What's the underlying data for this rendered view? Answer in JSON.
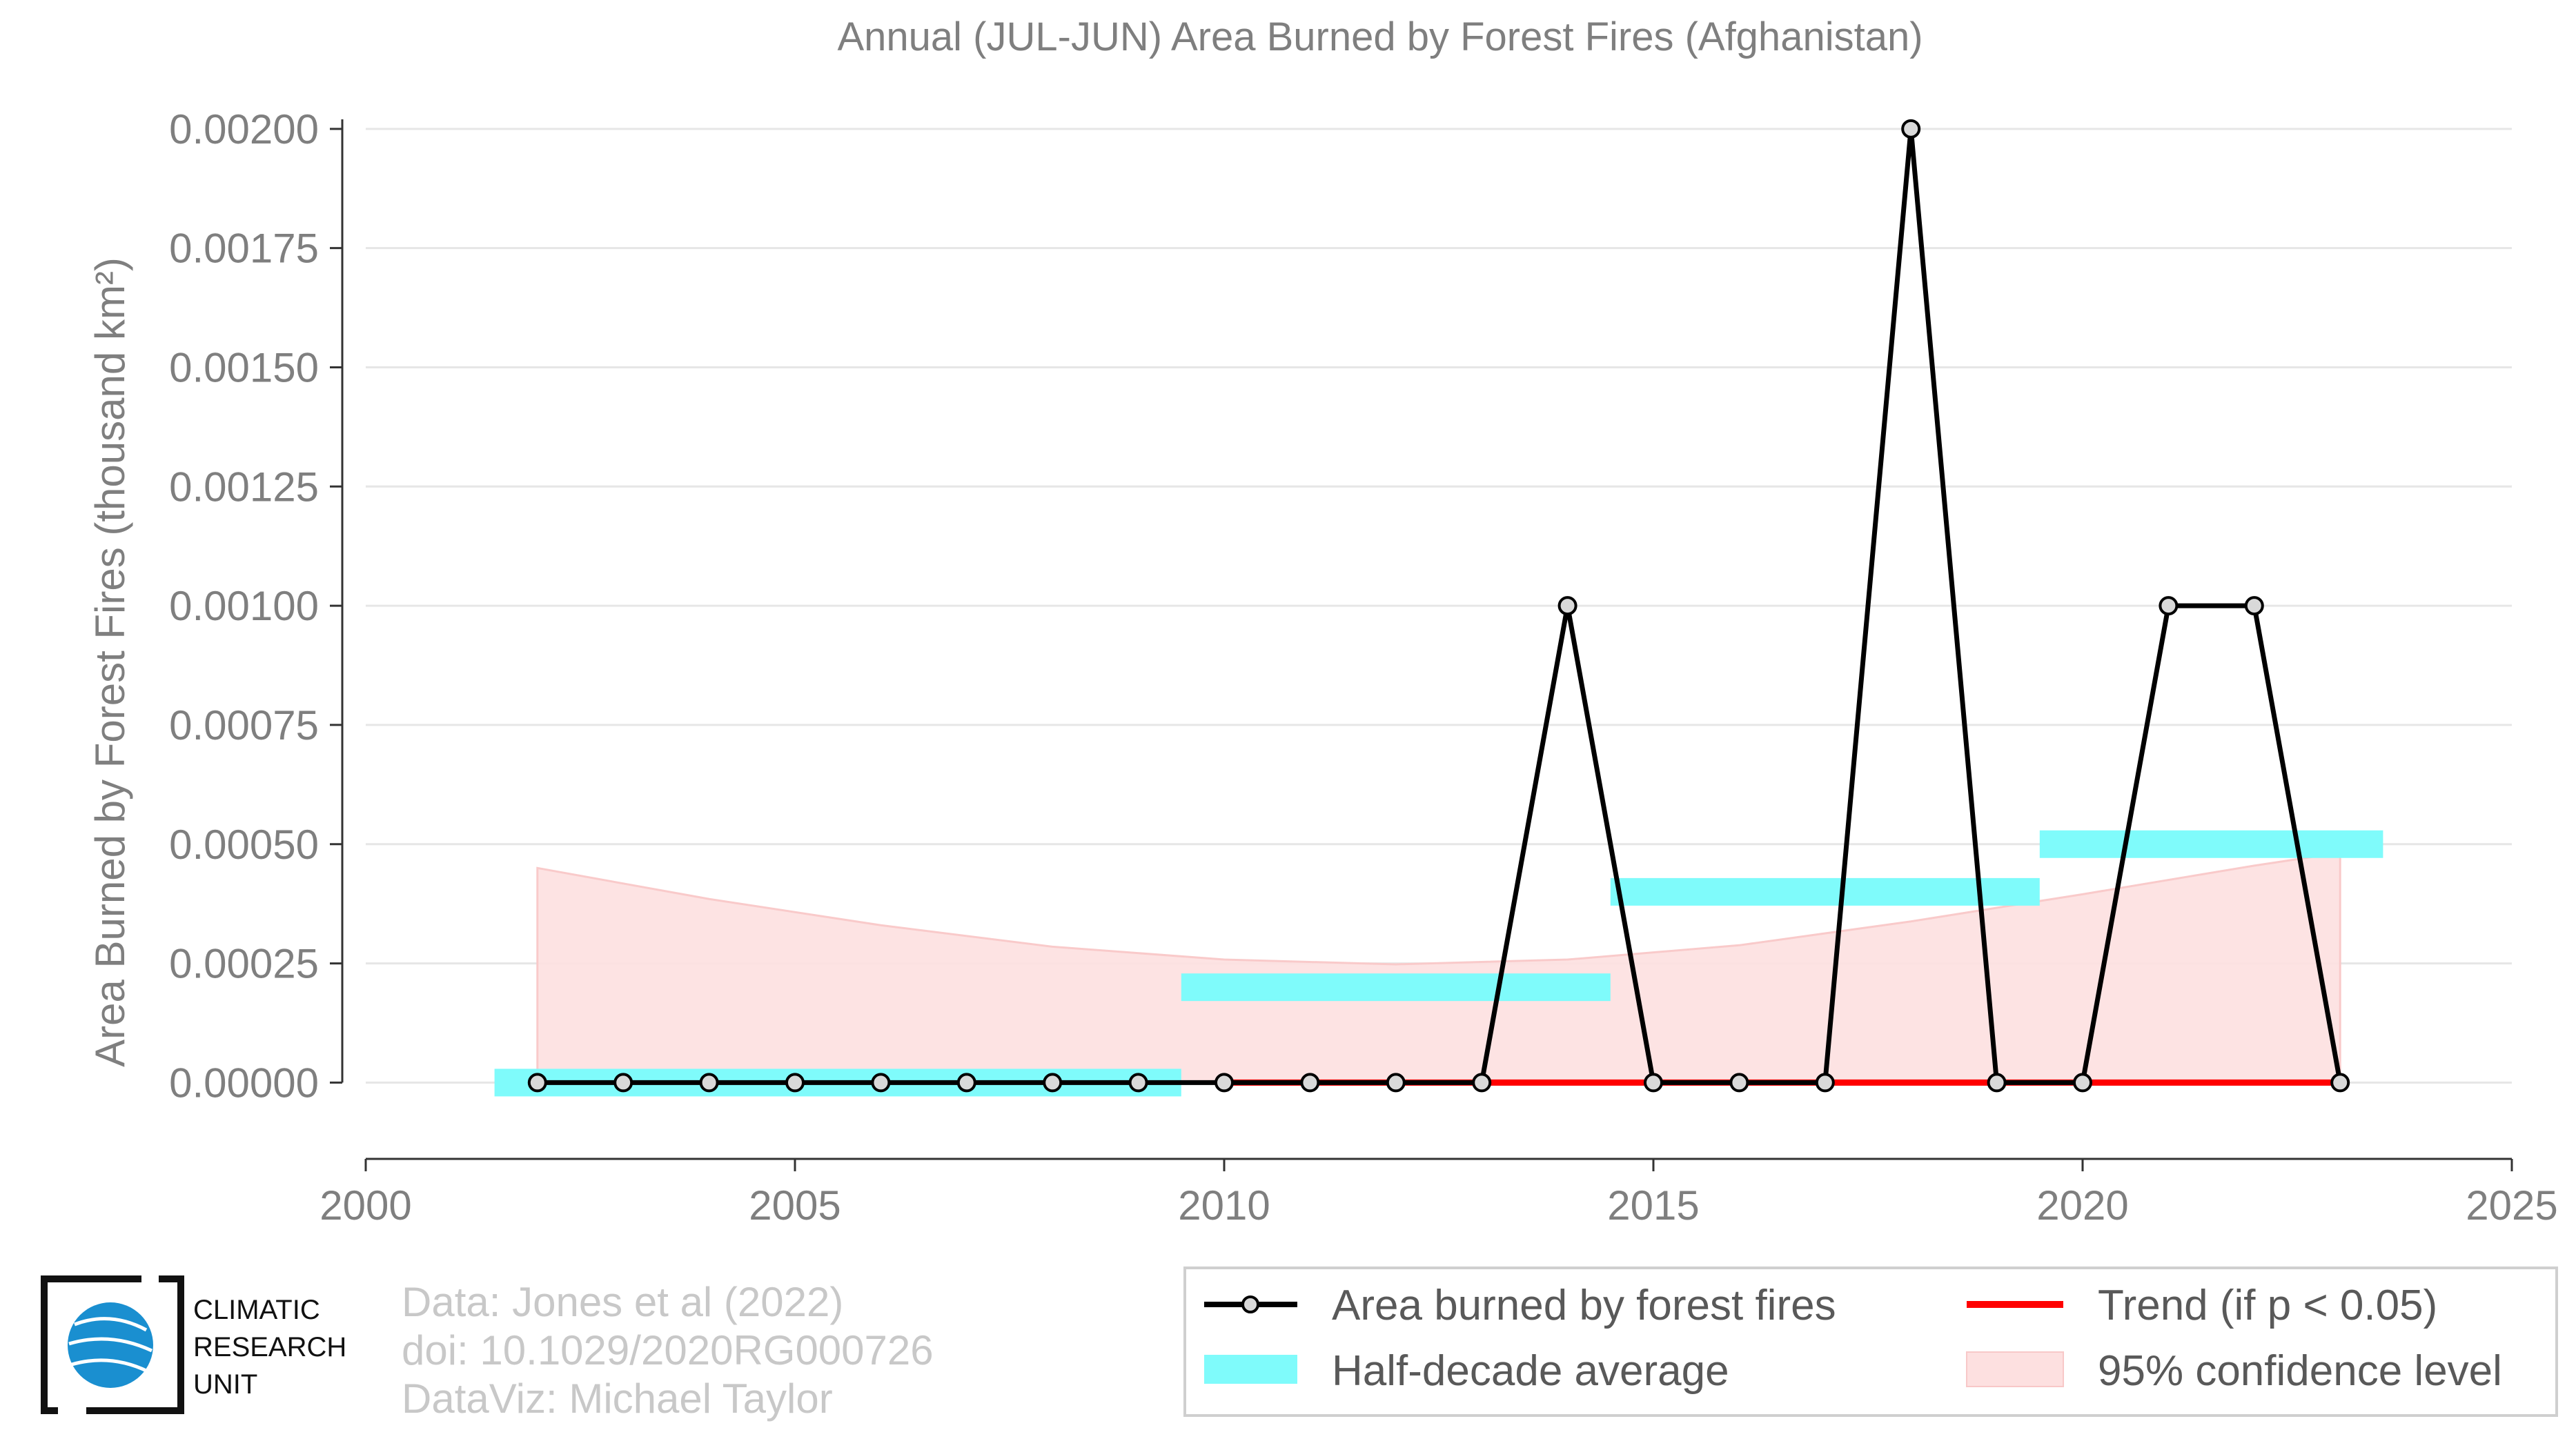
{
  "chart_data": {
    "type": "line",
    "title": "Annual (JUL-JUN) Area Burned by Forest Fires (Afghanistan)",
    "ylabel": "Area Burned by Forest Fires (thousand km²)",
    "xlabel": "",
    "xlim": [
      2000,
      2025
    ],
    "ylim": [
      -0.00016,
      0.00202
    ],
    "x_ticks": [
      2000,
      2005,
      2010,
      2015,
      2020,
      2025
    ],
    "x_tick_labels": [
      "2000",
      "2005",
      "2010",
      "2015",
      "2020",
      "2025"
    ],
    "y_ticks": [
      0,
      0.00025,
      0.0005,
      0.00075,
      0.001,
      0.00125,
      0.0015,
      0.00175,
      0.002
    ],
    "y_tick_labels": [
      "0.00000",
      "0.00025",
      "0.00050",
      "0.00075",
      "0.00100",
      "0.00125",
      "0.00150",
      "0.00175",
      "0.00200"
    ],
    "grid": true,
    "series": [
      {
        "name": "Area burned by forest fires",
        "color": "#000000",
        "x": [
          2002,
          2003,
          2004,
          2005,
          2006,
          2007,
          2008,
          2009,
          2010,
          2011,
          2012,
          2013,
          2014,
          2015,
          2016,
          2017,
          2018,
          2019,
          2020,
          2021,
          2022,
          2023
        ],
        "values": [
          0,
          0,
          0,
          0,
          0,
          0,
          0,
          0,
          0,
          0,
          0,
          0,
          0.001,
          0,
          0,
          0,
          0.002,
          0,
          0,
          0.001,
          0.001,
          0
        ]
      }
    ],
    "half_decade_average": {
      "name": "Half-decade average",
      "color": "#7ffbfb",
      "segments": [
        {
          "x_start": 2001.5,
          "x_end": 2009.5,
          "value": 0
        },
        {
          "x_start": 2009.5,
          "x_end": 2014.5,
          "value": 0.0002
        },
        {
          "x_start": 2014.5,
          "x_end": 2019.5,
          "value": 0.0004
        },
        {
          "x_start": 2019.5,
          "x_end": 2023.5,
          "value": 0.0005
        }
      ]
    },
    "trend": {
      "name": "Trend (if p < 0.05)",
      "color": "#ff0000",
      "x_start": 2010,
      "x_end": 2023,
      "value": 0
    },
    "confidence_band": {
      "name": "95% confidence level",
      "color": "#fde0e0",
      "x": [
        2002,
        2004,
        2006,
        2008,
        2010,
        2012,
        2014,
        2016,
        2018,
        2020,
        2022,
        2023
      ],
      "upper": [
        0.00045,
        0.000385,
        0.00033,
        0.000285,
        0.000258,
        0.000248,
        0.000258,
        0.000288,
        0.000338,
        0.000395,
        0.000455,
        0.000482
      ],
      "lower": [
        0,
        0,
        0,
        0,
        0,
        0,
        0,
        0,
        0,
        0,
        0,
        0
      ]
    },
    "legend_position": "bottom-right",
    "legend": [
      "Area burned by forest fires",
      "Trend (if p < 0.05)",
      "Half-decade average",
      "95% confidence level"
    ]
  },
  "credits": {
    "line1": "Data: Jones et al (2022)",
    "line2": "doi: 10.1029/2020RG000726",
    "line3": "DataViz: Michael Taylor"
  },
  "logo": {
    "line1": "CLIMATIC",
    "line2": "RESEARCH",
    "line3": "UNIT",
    "globe_color": "#1a8fd0"
  }
}
